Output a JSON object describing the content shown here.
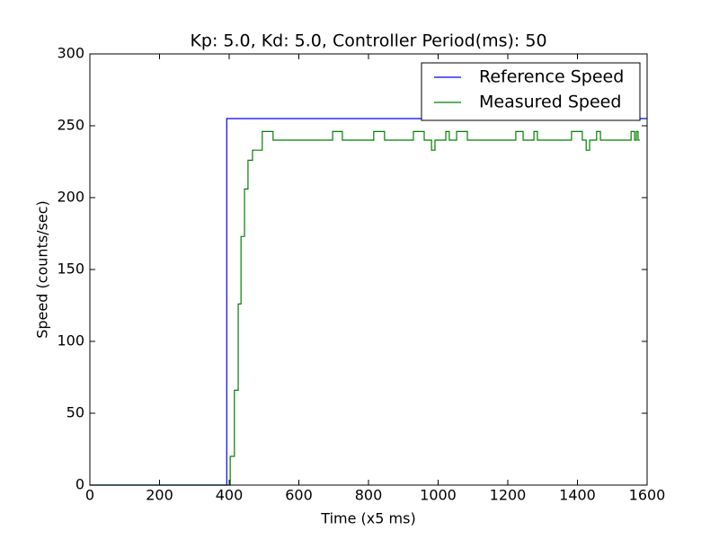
{
  "chart_data": {
    "type": "line",
    "title": "Kp: 5.0, Kd: 5.0, Controller Period(ms): 50",
    "x_label": "Time (x5 ms)",
    "y_label": "Speed (counts/sec)",
    "xlim": [
      0,
      1600
    ],
    "xticks": [
      0,
      200,
      400,
      600,
      800,
      1000,
      1200,
      1400,
      1600
    ],
    "ylim": [
      0,
      300
    ],
    "yticks": [
      0,
      50,
      100,
      150,
      200,
      250,
      300
    ],
    "grid": false,
    "legend_position": "upper-right",
    "series": [
      {
        "name": "Reference Speed",
        "color": "#0000ff",
        "x": [
          0,
          393,
          393,
          1600
        ],
        "values": [
          0,
          0,
          255,
          255
        ]
      },
      {
        "name": "Measured Speed",
        "color": "#008000",
        "x": [
          0,
          403,
          403,
          415,
          415,
          426,
          426,
          434,
          434,
          444,
          444,
          454,
          454,
          467,
          467,
          495,
          495,
          526,
          526,
          697,
          697,
          725,
          725,
          815,
          815,
          846,
          846,
          929,
          929,
          960,
          960,
          981,
          981,
          991,
          991,
          1022,
          1022,
          1032,
          1032,
          1053,
          1053,
          1084,
          1084,
          1223,
          1223,
          1244,
          1244,
          1275,
          1275,
          1285,
          1285,
          1383,
          1383,
          1414,
          1414,
          1425,
          1425,
          1435,
          1435,
          1455,
          1455,
          1466,
          1466,
          1554,
          1554,
          1564,
          1564,
          1569,
          1569,
          1574,
          1574,
          1579
        ],
        "values": [
          0,
          0,
          20,
          20,
          66,
          66,
          126,
          126,
          173,
          173,
          206,
          206,
          226,
          226,
          233,
          233,
          246,
          246,
          240,
          240,
          246,
          246,
          240,
          240,
          246,
          246,
          240,
          240,
          246,
          246,
          240,
          240,
          233,
          233,
          240,
          240,
          246,
          246,
          240,
          240,
          246,
          246,
          240,
          240,
          246,
          246,
          240,
          240,
          246,
          246,
          240,
          240,
          246,
          246,
          240,
          240,
          233,
          233,
          240,
          240,
          246,
          246,
          240,
          240,
          246,
          246,
          240,
          240,
          246,
          246,
          240,
          240
        ]
      }
    ]
  }
}
